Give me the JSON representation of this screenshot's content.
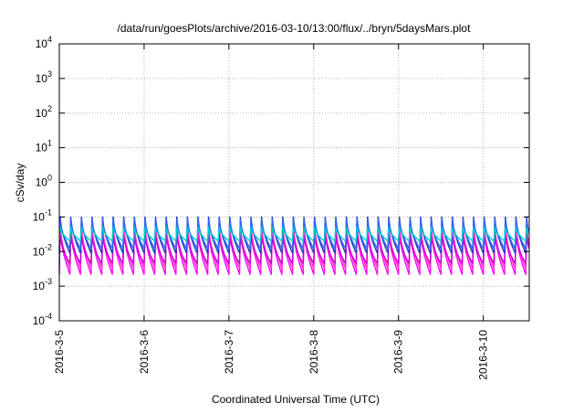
{
  "chart_data": {
    "type": "line",
    "title": "/data/run/goesPlots/archive/2016-03-10/13:00/flux/../bryn/5daysMars.plot",
    "xlabel": "Coordinated Universal Time (UTC)",
    "ylabel": "cSv/day",
    "x_scale": "time",
    "y_scale": "log",
    "grid": true,
    "xlim": [
      "2016-03-05T00:00",
      "2016-03-10T13:00"
    ],
    "ylim": [
      0.0001,
      10000
    ],
    "x_ticks": [
      "2016-3-5",
      "2016-3-6",
      "2016-3-7",
      "2016-3-8",
      "2016-3-9",
      "2016-3-10"
    ],
    "y_ticks": [
      {
        "base": "10",
        "exp": "-4",
        "value": 0.0001
      },
      {
        "base": "10",
        "exp": "-3",
        "value": 0.001
      },
      {
        "base": "10",
        "exp": "-2",
        "value": 0.01
      },
      {
        "base": "10",
        "exp": "-1",
        "value": 0.1
      },
      {
        "base": "10",
        "exp": "0",
        "value": 1
      },
      {
        "base": "10",
        "exp": "1",
        "value": 10
      },
      {
        "base": "10",
        "exp": "2",
        "value": 100
      },
      {
        "base": "10",
        "exp": "3",
        "value": 1000
      },
      {
        "base": "10",
        "exp": "4",
        "value": 10000
      }
    ],
    "cycle_hours": 3,
    "series": [
      {
        "color": "#ff00ff",
        "peak": 0.045,
        "trough": 0.0022
      },
      {
        "color": "#ff33cc",
        "peak": 0.06,
        "trough": 0.0032
      },
      {
        "color": "#cc00cc",
        "peak": 0.03,
        "trough": 0.0045
      },
      {
        "color": "#1f3fbf",
        "peak": 0.1,
        "trough": 0.009
      },
      {
        "color": "#3366ff",
        "peak": 0.085,
        "trough": 0.012
      },
      {
        "color": "#00cccc",
        "peak": 0.05,
        "trough": 0.02
      }
    ]
  }
}
